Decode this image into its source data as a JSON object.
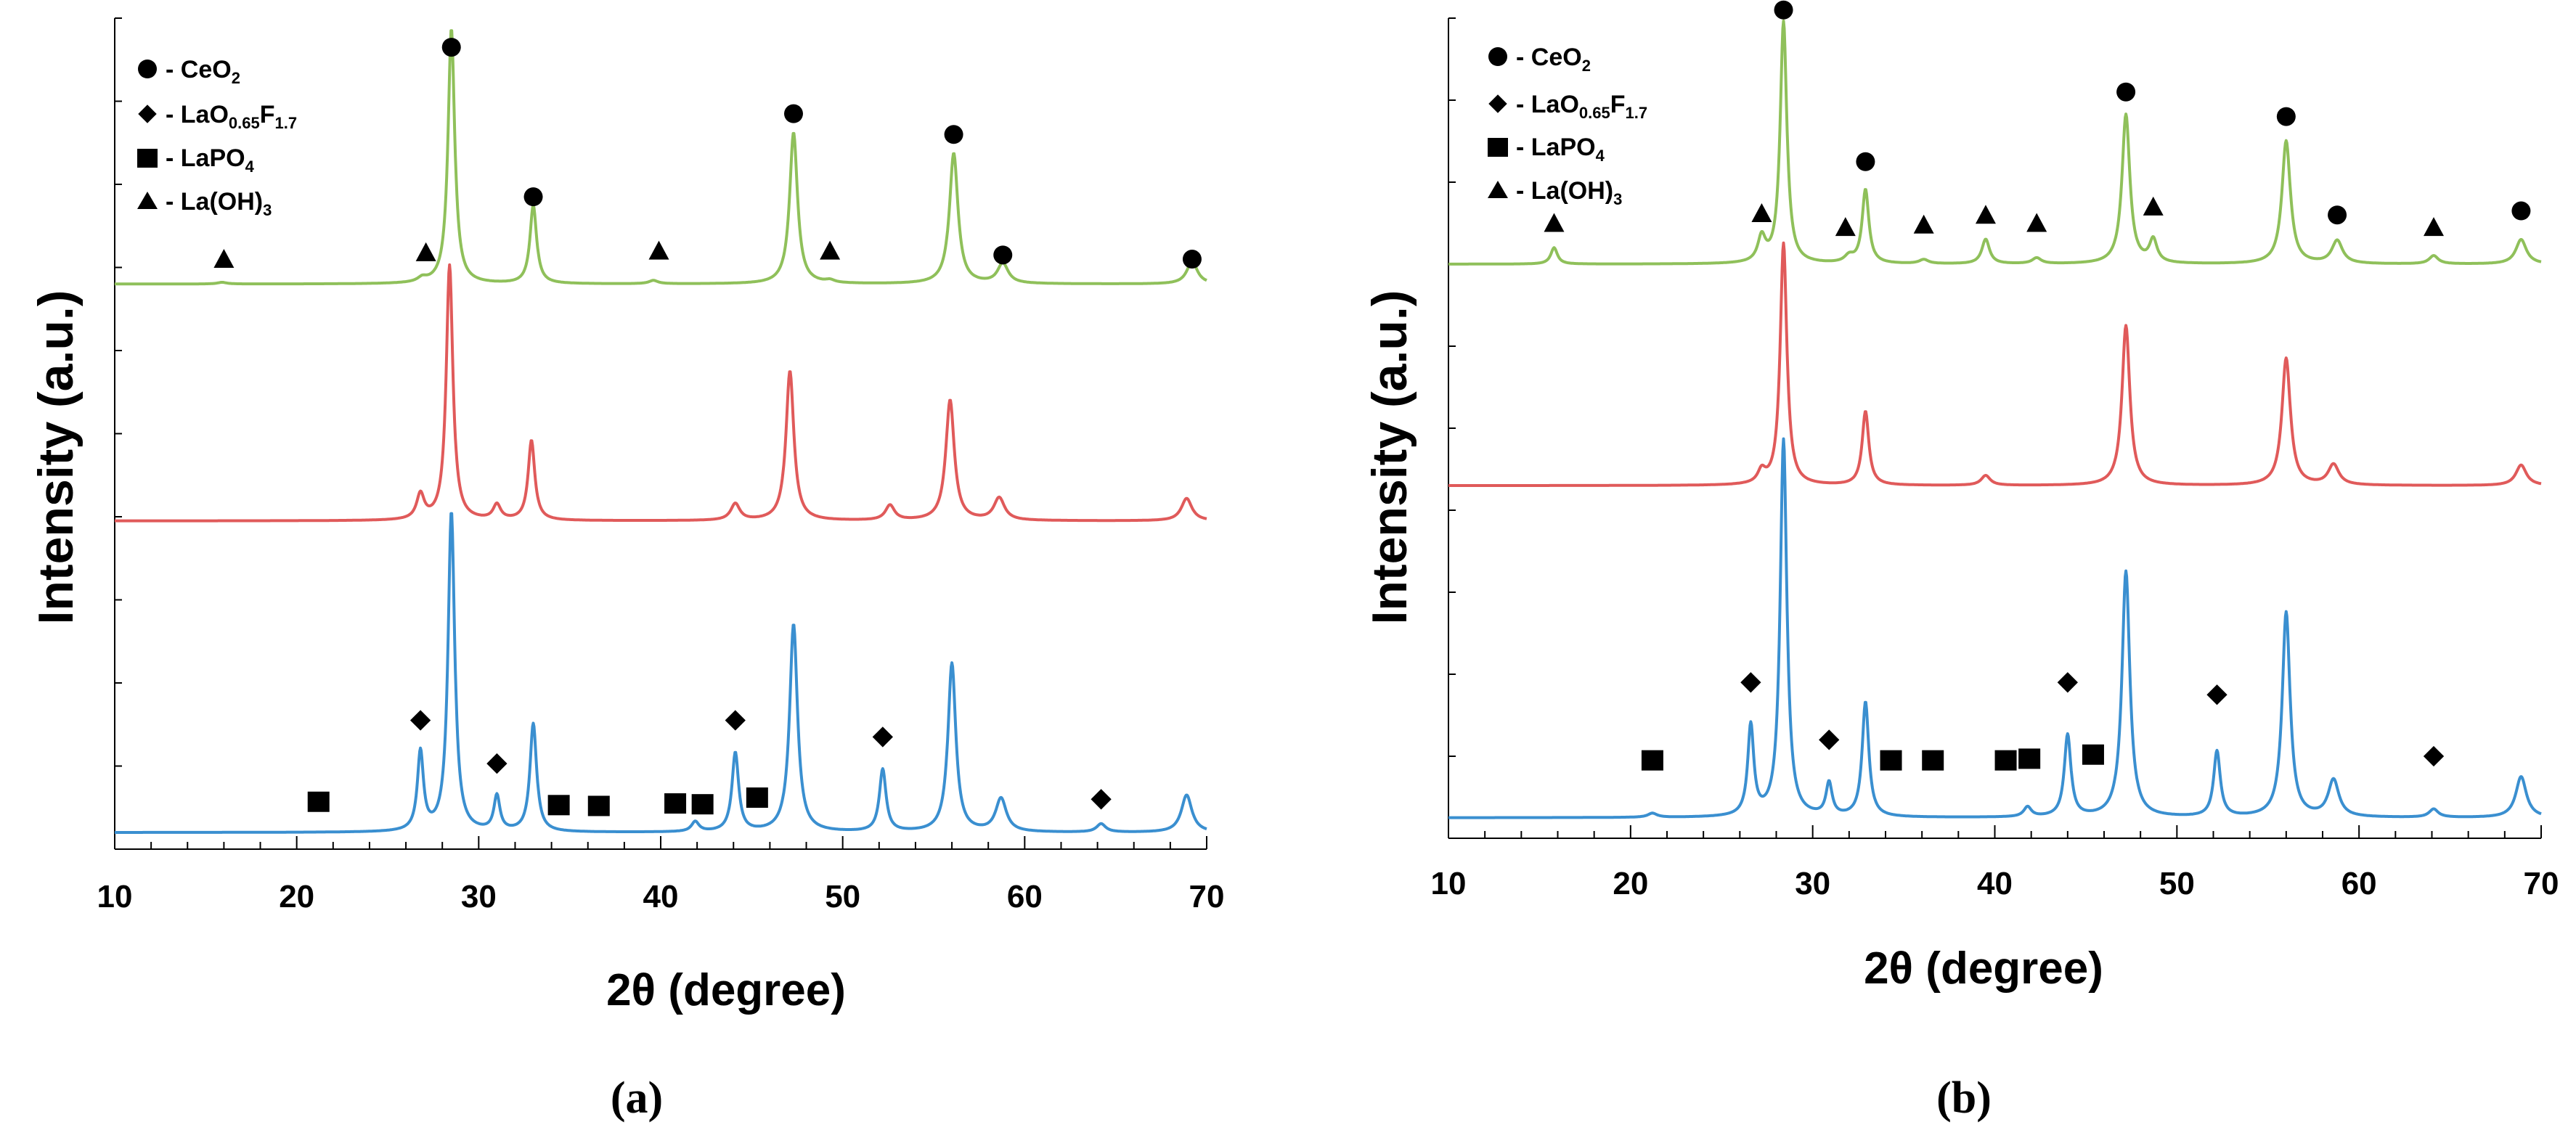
{
  "chart_data": [
    {
      "type": "line",
      "panel_label": "(a)",
      "xlabel": "2θ (degree)",
      "ylabel": "Intensity (a.u.)",
      "xlim": [
        10,
        70
      ],
      "xticks": [
        10,
        20,
        30,
        40,
        50,
        60,
        70
      ],
      "y_units": "arbitrary units, 0 to 10 relative scale",
      "ylim": [
        0,
        10
      ],
      "series": [
        {
          "name": "top pattern",
          "color": "#8fc05a",
          "baseline": 6.8,
          "peaks": [
            {
              "x": 15.9,
              "h": 0.02,
              "w": 0.3
            },
            {
              "x": 26.9,
              "h": 0.05,
              "w": 0.3
            },
            {
              "x": 28.5,
              "h": 3.07,
              "w": 0.22
            },
            {
              "x": 33.0,
              "h": 0.94,
              "w": 0.22
            },
            {
              "x": 39.6,
              "h": 0.04,
              "w": 0.3
            },
            {
              "x": 47.3,
              "h": 1.82,
              "w": 0.26
            },
            {
              "x": 49.3,
              "h": 0.03,
              "w": 0.3
            },
            {
              "x": 56.1,
              "h": 1.57,
              "w": 0.28
            },
            {
              "x": 58.8,
              "h": 0.24,
              "w": 0.35
            },
            {
              "x": 69.2,
              "h": 0.27,
              "w": 0.35
            }
          ]
        },
        {
          "name": "middle pattern",
          "color": "#e05a5a",
          "baseline": 3.95,
          "peaks": [
            {
              "x": 26.8,
              "h": 0.3,
              "w": 0.25
            },
            {
              "x": 28.4,
              "h": 3.07,
              "w": 0.22
            },
            {
              "x": 31.0,
              "h": 0.18,
              "w": 0.25
            },
            {
              "x": 32.9,
              "h": 0.96,
              "w": 0.22
            },
            {
              "x": 44.1,
              "h": 0.2,
              "w": 0.3
            },
            {
              "x": 47.1,
              "h": 1.8,
              "w": 0.26
            },
            {
              "x": 52.6,
              "h": 0.18,
              "w": 0.3
            },
            {
              "x": 55.9,
              "h": 1.45,
              "w": 0.28
            },
            {
              "x": 58.6,
              "h": 0.27,
              "w": 0.35
            },
            {
              "x": 68.9,
              "h": 0.27,
              "w": 0.35
            }
          ]
        },
        {
          "name": "bottom pattern",
          "color": "#3a8fd0",
          "baseline": 0.2,
          "peaks": [
            {
              "x": 26.8,
              "h": 0.95,
              "w": 0.2
            },
            {
              "x": 28.5,
              "h": 3.85,
              "w": 0.22
            },
            {
              "x": 31.0,
              "h": 0.42,
              "w": 0.2
            },
            {
              "x": 33.0,
              "h": 1.3,
              "w": 0.22
            },
            {
              "x": 41.9,
              "h": 0.12,
              "w": 0.25
            },
            {
              "x": 44.1,
              "h": 0.95,
              "w": 0.22
            },
            {
              "x": 47.3,
              "h": 2.5,
              "w": 0.26
            },
            {
              "x": 52.2,
              "h": 0.75,
              "w": 0.22
            },
            {
              "x": 56.0,
              "h": 2.03,
              "w": 0.26
            },
            {
              "x": 58.7,
              "h": 0.4,
              "w": 0.35
            },
            {
              "x": 64.2,
              "h": 0.1,
              "w": 0.3
            },
            {
              "x": 68.9,
              "h": 0.45,
              "w": 0.35
            }
          ]
        }
      ],
      "markers": [
        {
          "phase": "CeO2",
          "shape": "circle",
          "x": 28.5,
          "y": 9.65
        },
        {
          "phase": "CeO2",
          "shape": "circle",
          "x": 33.0,
          "y": 7.85
        },
        {
          "phase": "CeO2",
          "shape": "circle",
          "x": 47.3,
          "y": 8.85
        },
        {
          "phase": "CeO2",
          "shape": "circle",
          "x": 56.1,
          "y": 8.6
        },
        {
          "phase": "CeO2",
          "shape": "circle",
          "x": 58.8,
          "y": 7.15
        },
        {
          "phase": "CeO2",
          "shape": "circle",
          "x": 69.2,
          "y": 7.1
        },
        {
          "phase": "La(OH)3",
          "shape": "triangle",
          "x": 16.0,
          "y": 7.1
        },
        {
          "phase": "La(OH)3",
          "shape": "triangle",
          "x": 27.1,
          "y": 7.18
        },
        {
          "phase": "La(OH)3",
          "shape": "triangle",
          "x": 39.9,
          "y": 7.2
        },
        {
          "phase": "La(OH)3",
          "shape": "triangle",
          "x": 49.3,
          "y": 7.2
        },
        {
          "phase": "LaO0.65F1.7",
          "shape": "diamond",
          "x": 26.8,
          "y": 1.55
        },
        {
          "phase": "LaO0.65F1.7",
          "shape": "diamond",
          "x": 31.0,
          "y": 1.03
        },
        {
          "phase": "LaO0.65F1.7",
          "shape": "diamond",
          "x": 44.1,
          "y": 1.55
        },
        {
          "phase": "LaO0.65F1.7",
          "shape": "diamond",
          "x": 52.2,
          "y": 1.35
        },
        {
          "phase": "LaO0.65F1.7",
          "shape": "diamond",
          "x": 64.2,
          "y": 0.6
        },
        {
          "phase": "LaPO4",
          "shape": "square",
          "x": 21.2,
          "y": 0.57
        },
        {
          "phase": "LaPO4",
          "shape": "square",
          "x": 34.4,
          "y": 0.53
        },
        {
          "phase": "LaPO4",
          "shape": "square",
          "x": 36.6,
          "y": 0.52
        },
        {
          "phase": "LaPO4",
          "shape": "square",
          "x": 40.8,
          "y": 0.55
        },
        {
          "phase": "LaPO4",
          "shape": "square",
          "x": 42.3,
          "y": 0.54
        },
        {
          "phase": "LaPO4",
          "shape": "square",
          "x": 45.3,
          "y": 0.62
        }
      ]
    },
    {
      "type": "line",
      "panel_label": "(b)",
      "xlabel": "2θ (degree)",
      "ylabel": "Intensity (a.u.)",
      "xlim": [
        10,
        70
      ],
      "xticks": [
        10,
        20,
        30,
        40,
        50,
        60,
        70
      ],
      "y_units": "arbitrary units, 0 to 10 relative scale",
      "ylim": [
        0,
        10
      ],
      "series": [
        {
          "name": "top pattern",
          "color": "#8fc05a",
          "baseline": 7.0,
          "peaks": [
            {
              "x": 15.8,
              "h": 0.2,
              "w": 0.22
            },
            {
              "x": 27.2,
              "h": 0.3,
              "w": 0.25
            },
            {
              "x": 28.4,
              "h": 2.95,
              "w": 0.22
            },
            {
              "x": 32.0,
              "h": 0.08,
              "w": 0.3
            },
            {
              "x": 32.9,
              "h": 0.9,
              "w": 0.22
            },
            {
              "x": 36.1,
              "h": 0.05,
              "w": 0.3
            },
            {
              "x": 39.5,
              "h": 0.3,
              "w": 0.25
            },
            {
              "x": 42.3,
              "h": 0.07,
              "w": 0.3
            },
            {
              "x": 47.2,
              "h": 1.82,
              "w": 0.26
            },
            {
              "x": 48.7,
              "h": 0.28,
              "w": 0.25
            },
            {
              "x": 56.0,
              "h": 1.5,
              "w": 0.28
            },
            {
              "x": 58.8,
              "h": 0.28,
              "w": 0.35
            },
            {
              "x": 64.1,
              "h": 0.1,
              "w": 0.3
            },
            {
              "x": 68.9,
              "h": 0.3,
              "w": 0.35
            }
          ]
        },
        {
          "name": "middle pattern",
          "color": "#e05a5a",
          "baseline": 4.3,
          "peaks": [
            {
              "x": 27.2,
              "h": 0.15,
              "w": 0.25
            },
            {
              "x": 28.4,
              "h": 2.95,
              "w": 0.22
            },
            {
              "x": 32.9,
              "h": 0.9,
              "w": 0.22
            },
            {
              "x": 39.5,
              "h": 0.12,
              "w": 0.3
            },
            {
              "x": 47.2,
              "h": 1.95,
              "w": 0.26
            },
            {
              "x": 56.0,
              "h": 1.55,
              "w": 0.28
            },
            {
              "x": 58.6,
              "h": 0.25,
              "w": 0.35
            },
            {
              "x": 68.9,
              "h": 0.25,
              "w": 0.35
            }
          ]
        },
        {
          "name": "bottom pattern",
          "color": "#3a8fd0",
          "baseline": 0.25,
          "peaks": [
            {
              "x": 21.2,
              "h": 0.05,
              "w": 0.3
            },
            {
              "x": 26.6,
              "h": 1.1,
              "w": 0.2
            },
            {
              "x": 28.4,
              "h": 4.6,
              "w": 0.22
            },
            {
              "x": 30.9,
              "h": 0.4,
              "w": 0.2
            },
            {
              "x": 32.9,
              "h": 1.4,
              "w": 0.22
            },
            {
              "x": 41.8,
              "h": 0.12,
              "w": 0.25
            },
            {
              "x": 44.0,
              "h": 1.0,
              "w": 0.22
            },
            {
              "x": 47.2,
              "h": 3.0,
              "w": 0.26
            },
            {
              "x": 52.2,
              "h": 0.8,
              "w": 0.22
            },
            {
              "x": 56.0,
              "h": 2.5,
              "w": 0.26
            },
            {
              "x": 58.6,
              "h": 0.45,
              "w": 0.35
            },
            {
              "x": 64.1,
              "h": 0.1,
              "w": 0.3
            },
            {
              "x": 68.9,
              "h": 0.5,
              "w": 0.35
            }
          ]
        }
      ],
      "markers": [
        {
          "phase": "CeO2",
          "shape": "circle",
          "x": 28.4,
          "y": 10.1
        },
        {
          "phase": "CeO2",
          "shape": "circle",
          "x": 32.9,
          "y": 8.25
        },
        {
          "phase": "CeO2",
          "shape": "circle",
          "x": 47.2,
          "y": 9.1
        },
        {
          "phase": "CeO2",
          "shape": "circle",
          "x": 56.0,
          "y": 8.8
        },
        {
          "phase": "CeO2",
          "shape": "circle",
          "x": 58.8,
          "y": 7.6
        },
        {
          "phase": "CeO2",
          "shape": "circle",
          "x": 68.9,
          "y": 7.65
        },
        {
          "phase": "La(OH)3",
          "shape": "triangle",
          "x": 15.8,
          "y": 7.5
        },
        {
          "phase": "La(OH)3",
          "shape": "triangle",
          "x": 27.2,
          "y": 7.62
        },
        {
          "phase": "La(OH)3",
          "shape": "triangle",
          "x": 31.8,
          "y": 7.45
        },
        {
          "phase": "La(OH)3",
          "shape": "triangle",
          "x": 36.1,
          "y": 7.48
        },
        {
          "phase": "La(OH)3",
          "shape": "triangle",
          "x": 39.5,
          "y": 7.6
        },
        {
          "phase": "La(OH)3",
          "shape": "triangle",
          "x": 42.3,
          "y": 7.5
        },
        {
          "phase": "La(OH)3",
          "shape": "triangle",
          "x": 48.7,
          "y": 7.7
        },
        {
          "phase": "La(OH)3",
          "shape": "triangle",
          "x": 64.1,
          "y": 7.45
        },
        {
          "phase": "LaO0.65F1.7",
          "shape": "diamond",
          "x": 26.6,
          "y": 1.9
        },
        {
          "phase": "LaO0.65F1.7",
          "shape": "diamond",
          "x": 30.9,
          "y": 1.2
        },
        {
          "phase": "LaO0.65F1.7",
          "shape": "diamond",
          "x": 44.0,
          "y": 1.9
        },
        {
          "phase": "LaO0.65F1.7",
          "shape": "diamond",
          "x": 52.2,
          "y": 1.75
        },
        {
          "phase": "LaO0.65F1.7",
          "shape": "diamond",
          "x": 64.1,
          "y": 1.0
        },
        {
          "phase": "LaPO4",
          "shape": "square",
          "x": 21.2,
          "y": 0.95
        },
        {
          "phase": "LaPO4",
          "shape": "square",
          "x": 34.3,
          "y": 0.95
        },
        {
          "phase": "LaPO4",
          "shape": "square",
          "x": 36.6,
          "y": 0.95
        },
        {
          "phase": "LaPO4",
          "shape": "square",
          "x": 40.6,
          "y": 0.95
        },
        {
          "phase": "LaPO4",
          "shape": "square",
          "x": 41.9,
          "y": 0.97
        },
        {
          "phase": "LaPO4",
          "shape": "square",
          "x": 45.4,
          "y": 1.02
        }
      ]
    }
  ],
  "legend": {
    "position": "top-left",
    "items": [
      {
        "shape": "circle",
        "label": "- CeO",
        "sub": "2",
        "sub2_base": "",
        "sub2": ""
      },
      {
        "shape": "diamond",
        "label": "- LaO",
        "sub": "0.65",
        "sub2_base": "F",
        "sub2": "1.7"
      },
      {
        "shape": "square",
        "label": "- LaPO",
        "sub": "4",
        "sub2_base": "",
        "sub2": ""
      },
      {
        "shape": "triangle",
        "label": "- La(OH)",
        "sub": "3",
        "sub2_base": "",
        "sub2": ""
      }
    ]
  },
  "colors": {
    "marker": "#000000",
    "axis": "#000000"
  }
}
